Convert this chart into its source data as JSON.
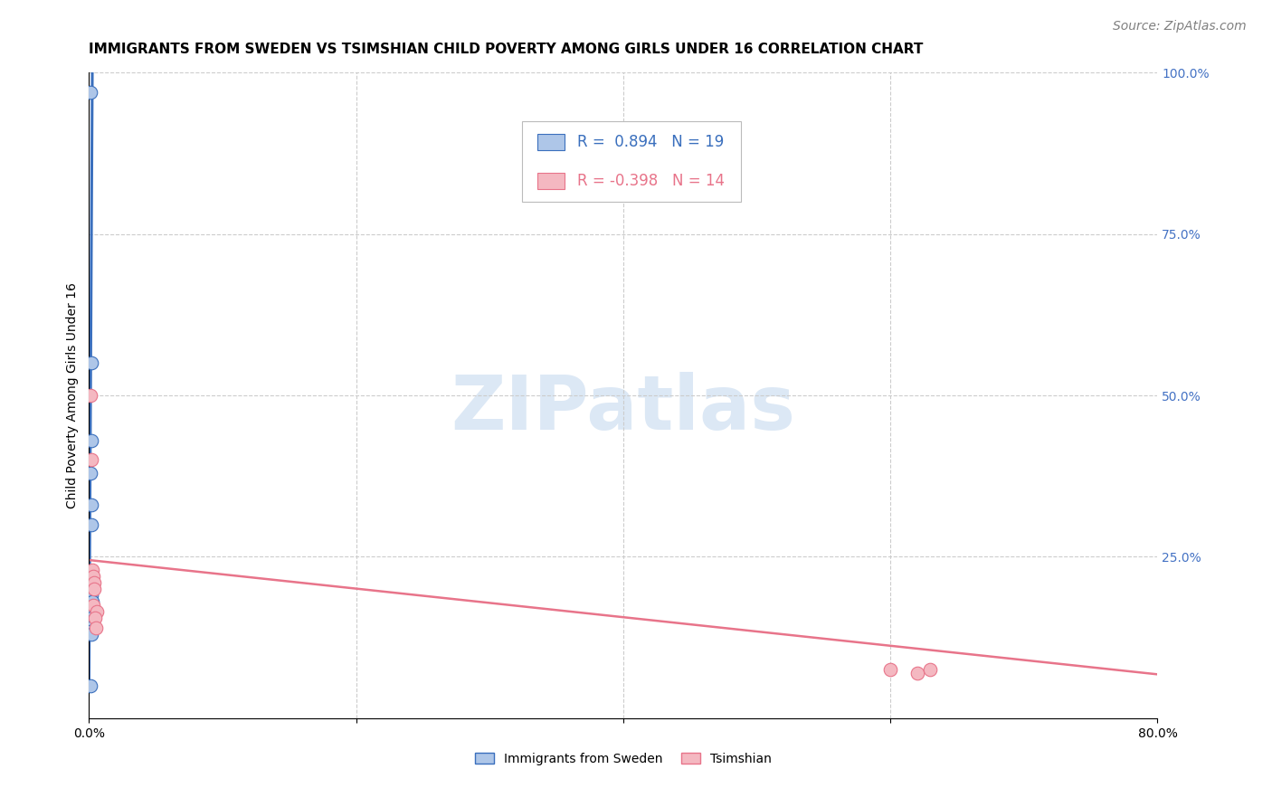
{
  "title": "IMMIGRANTS FROM SWEDEN VS TSIMSHIAN CHILD POVERTY AMONG GIRLS UNDER 16 CORRELATION CHART",
  "source": "Source: ZipAtlas.com",
  "ylabel": "Child Poverty Among Girls Under 16",
  "watermark": "ZIPatlas",
  "blue_label": "Immigrants from Sweden",
  "pink_label": "Tsimshian",
  "blue_R": "0.894",
  "blue_N": "19",
  "pink_R": "-0.398",
  "pink_N": "14",
  "blue_color": "#aec6e8",
  "pink_color": "#f4b8c1",
  "blue_line_color": "#3a6fbd",
  "pink_line_color": "#e8748a",
  "xlim": [
    0.0,
    0.8
  ],
  "ylim": [
    0.0,
    1.0
  ],
  "x_ticks": [
    0.0,
    0.2,
    0.4,
    0.6,
    0.8
  ],
  "x_tick_labels": [
    "0.0%",
    "",
    "",
    "",
    "80.0%"
  ],
  "y_ticks_right": [
    0.25,
    0.5,
    0.75,
    1.0
  ],
  "y_tick_labels_right": [
    "25.0%",
    "50.0%",
    "75.0%",
    "100.0%"
  ],
  "blue_x": [
    0.0012,
    0.0015,
    0.0018,
    0.0013,
    0.0016,
    0.002,
    0.0014,
    0.0017,
    0.0011,
    0.0019,
    0.0021,
    0.0022,
    0.0013,
    0.0016,
    0.0018,
    0.0012,
    0.0014,
    0.0017,
    0.001
  ],
  "blue_y": [
    0.97,
    0.55,
    0.43,
    0.38,
    0.33,
    0.3,
    0.22,
    0.21,
    0.2,
    0.19,
    0.18,
    0.17,
    0.16,
    0.155,
    0.15,
    0.14,
    0.135,
    0.13,
    0.05
  ],
  "pink_x": [
    0.001,
    0.0018,
    0.002,
    0.0025,
    0.003,
    0.0035,
    0.004,
    0.0028,
    0.006,
    0.0045,
    0.005,
    0.6,
    0.62,
    0.63
  ],
  "pink_y": [
    0.5,
    0.4,
    0.21,
    0.23,
    0.22,
    0.21,
    0.2,
    0.175,
    0.165,
    0.155,
    0.14,
    0.075,
    0.07,
    0.075
  ],
  "blue_trend_x": [
    0.0,
    0.0025
  ],
  "blue_trend_y": [
    0.06,
    1.02
  ],
  "pink_trend_x": [
    0.0,
    0.8
  ],
  "pink_trend_y": [
    0.245,
    0.068
  ],
  "background_color": "#ffffff",
  "grid_color": "#cccccc",
  "title_fontsize": 11,
  "source_fontsize": 10,
  "label_fontsize": 10,
  "tick_fontsize": 10,
  "legend_fontsize": 12,
  "watermark_fontsize": 60,
  "watermark_color": "#dce8f5",
  "right_tick_color": "#4472c4"
}
